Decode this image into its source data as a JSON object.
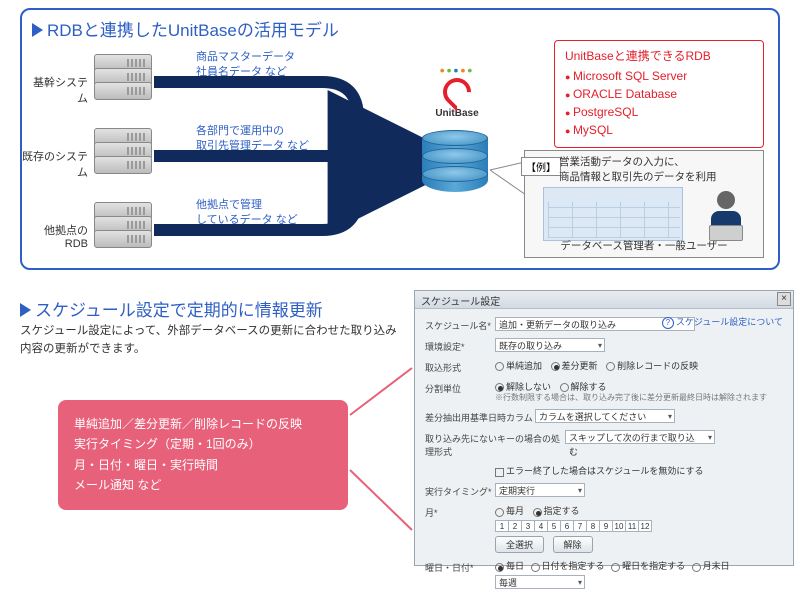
{
  "colors": {
    "brand_blue": "#2e5fc4",
    "accent_red": "#e3202c",
    "pink": "#e8617a",
    "db_blue": "#3b8cc0",
    "arrow_navy": "#102a5c"
  },
  "top": {
    "title": "RDBと連携したUnitBaseの活用モデル",
    "servers": [
      {
        "label": "基幹システム",
        "flow": "商品マスターデータ\n社員名データ など"
      },
      {
        "label": "既存のシステム",
        "flow": "各部門で運用中の\n取引先管理データ など"
      },
      {
        "label": "他拠点のRDB",
        "flow": "他拠点で管理\nしているデータ など"
      }
    ],
    "unitbase_label": "UnitBase",
    "rdb_box": {
      "header": "UnitBaseと連携できるRDB",
      "items": [
        "Microsoft SQL Server",
        "ORACLE Database",
        "PostgreSQL",
        "MySQL"
      ]
    },
    "example": {
      "badge": "【例】",
      "text": "営業活動データの入力に、\n商品情報と取引先のデータを利用",
      "caption": "データベース管理者・一般ユーザー"
    }
  },
  "sec2": {
    "title": "スケジュール設定で定期的に情報更新",
    "desc": "スケジュール設定によって、外部データベースの更新に合わせた取り込み内容の更新ができます。",
    "pink_lines": [
      "単純追加／差分更新／削除レコードの反映",
      "実行タイミング（定期・1回のみ）",
      "月・日付・曜日・実行時間",
      "メール通知 など"
    ]
  },
  "sched": {
    "window_title": "スケジュール設定",
    "help": "スケジュール設定について",
    "rows": {
      "name_label": "スケジュール名*",
      "name_value": "追加・更新データの取り込み",
      "env_label": "環境設定*",
      "env_value": "既存の取り込み",
      "fmt_label": "取込形式",
      "fmt_opts": [
        "単純追加",
        "差分更新",
        "削除レコードの反映"
      ],
      "diff_label": "分割単位",
      "diff_opts": [
        "解除しない",
        "解除する"
      ],
      "diff_note": "※行数制限する場合は、取り込み完了後に差分更新最終日時は解除されます",
      "basekey_label": "差分抽出用基準日時カラム",
      "basekey_ph": "カラムを選択してください",
      "missing_label": "取り込み先にないキーの場合の処理形式",
      "missing_value": "スキップして次の行まで取り込む",
      "err_chk": "エラー終了した場合はスケジュールを無効にする",
      "timing_label": "実行タイミング*",
      "timing_value": "定期実行",
      "month_label": "月*",
      "month_opts": [
        "毎月",
        "指定する"
      ],
      "months": [
        "1",
        "2",
        "3",
        "4",
        "5",
        "6",
        "7",
        "8",
        "9",
        "10",
        "11",
        "12"
      ],
      "btn_all": "全選択",
      "btn_clear": "解除",
      "day_label": "曜日・日付*",
      "day_opts": [
        "毎日",
        "日付を指定する",
        "曜日を指定する",
        "月末日"
      ],
      "day_value": "毎週"
    }
  }
}
